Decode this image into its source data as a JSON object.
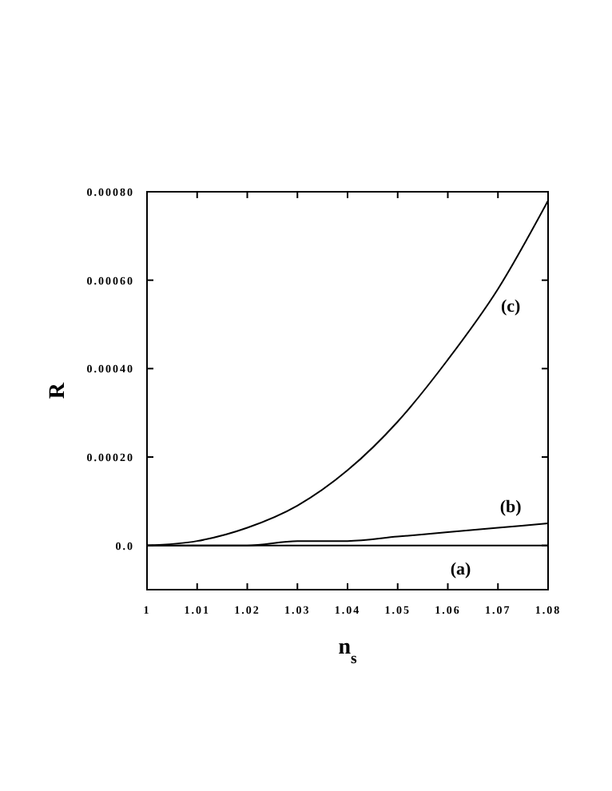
{
  "chart_data": {
    "type": "line",
    "xlabel": "n$_{s}$",
    "ylabel": "R",
    "xlim": [
      1,
      1.08
    ],
    "ylim": [
      -0.0001,
      0.0008
    ],
    "xticks": [
      1,
      1.01,
      1.02,
      1.03,
      1.04,
      1.05,
      1.06,
      1.07,
      1.08
    ],
    "yticks": [
      {
        "value": 0,
        "label": "0.0"
      },
      {
        "value": 0.0002,
        "label": "0.00020"
      },
      {
        "value": 0.0004,
        "label": "0.00040"
      },
      {
        "value": 0.0006,
        "label": "0.00060"
      },
      {
        "value": 0.0008,
        "label": "0.00080"
      }
    ],
    "grid": false,
    "marker": "none",
    "line_style": "solid",
    "series": [
      {
        "color": "#000000",
        "x": [
          1,
          1.02,
          1.04,
          1.06,
          1.08
        ],
        "values": [
          0,
          0,
          0,
          0,
          0
        ]
      },
      {
        "color": "#000000",
        "x": [
          1,
          1.01,
          1.02,
          1.03,
          1.04,
          1.05,
          1.06,
          1.07,
          1.08
        ],
        "values": [
          0,
          0,
          0,
          1e-05,
          1e-05,
          2e-05,
          3e-05,
          4e-05,
          5e-05
        ]
      },
      {
        "color": "#000000",
        "x": [
          1,
          1.01,
          1.02,
          1.03,
          1.04,
          1.05,
          1.06,
          1.07,
          1.08
        ],
        "values": [
          0,
          1e-05,
          4e-05,
          9e-05,
          0.00017,
          0.00028,
          0.00042,
          0.00058,
          0.00078
        ]
      }
    ],
    "annotations": [
      "(a)",
      "(b)",
      "(c)"
    ]
  }
}
